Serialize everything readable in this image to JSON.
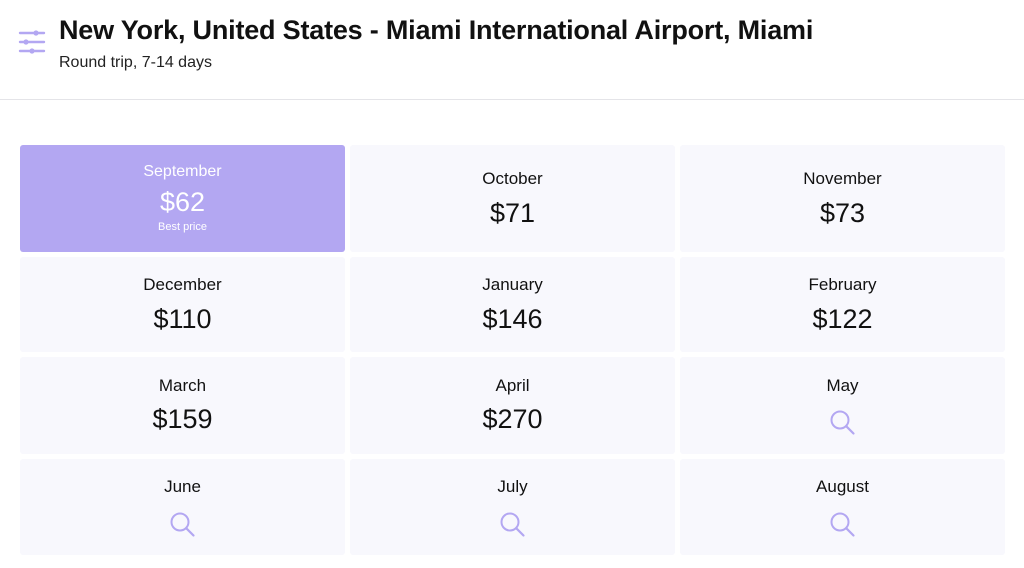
{
  "header": {
    "title": "New York, United States - Miami International Airport, Miami",
    "subtitle": "Round trip, 7-14 days",
    "filter_icon": "sliders-icon"
  },
  "colors": {
    "accent": "#b3a7f2",
    "icon": "#b3a7f2",
    "cell_bg": "#f8f8fd"
  },
  "months": [
    {
      "month": "September",
      "price": "$62",
      "note": "Best price",
      "best": true
    },
    {
      "month": "October",
      "price": "$71"
    },
    {
      "month": "November",
      "price": "$73"
    },
    {
      "month": "December",
      "price": "$110"
    },
    {
      "month": "January",
      "price": "$146"
    },
    {
      "month": "February",
      "price": "$122"
    },
    {
      "month": "March",
      "price": "$159"
    },
    {
      "month": "April",
      "price": "$270"
    },
    {
      "month": "May",
      "price": null,
      "icon": "search-icon"
    },
    {
      "month": "June",
      "price": null,
      "icon": "search-icon"
    },
    {
      "month": "July",
      "price": null,
      "icon": "search-icon"
    },
    {
      "month": "August",
      "price": null,
      "icon": "search-icon"
    }
  ]
}
